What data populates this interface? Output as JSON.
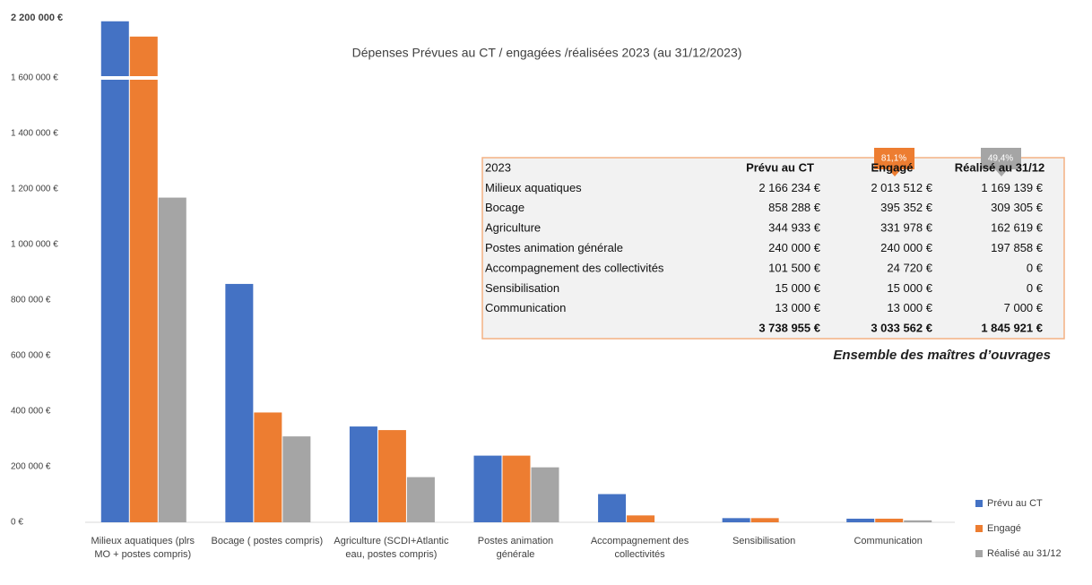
{
  "chart_data": {
    "type": "bar",
    "title": "Dépenses Prévues au CT / engagées /réalisées 2023 (au 31/12/2023)",
    "categories": [
      "Milieux aquatiques (plrs MO + postes compris)",
      "Bocage ( postes compris)",
      "Agriculture (SCDI+Atlantic eau, postes compris)",
      "Postes animation générale",
      "Accompagnement des collectivités",
      "Sensibilisation",
      "Communication"
    ],
    "series": [
      {
        "name": "Prévu au CT",
        "color": "#4472c4",
        "values": [
          2166234,
          858288,
          344933,
          240000,
          101500,
          15000,
          13000
        ]
      },
      {
        "name": "Engagé",
        "color": "#ed7d31",
        "values": [
          2013512,
          395352,
          331978,
          240000,
          24720,
          15000,
          13000
        ]
      },
      {
        "name": "Réalisé au 31/12",
        "color": "#a5a5a5",
        "values": [
          1169139,
          309305,
          162619,
          197858,
          0,
          0,
          7000
        ]
      }
    ],
    "ylim": [
      0,
      2200000
    ],
    "axis_break": 1600000,
    "yticks": [
      {
        "value": 0,
        "label": "0 €"
      },
      {
        "value": 200000,
        "label": "200 000 €"
      },
      {
        "value": 400000,
        "label": "400 000 €"
      },
      {
        "value": 600000,
        "label": "600 000 €"
      },
      {
        "value": 800000,
        "label": "800 000 €"
      },
      {
        "value": 1000000,
        "label": "1 000 000 €"
      },
      {
        "value": 1200000,
        "label": "1 200 000 €"
      },
      {
        "value": 1400000,
        "label": "1 400 000 €"
      },
      {
        "value": 1600000,
        "label": "1 600 000 €"
      },
      {
        "value": 2200000,
        "label": "2 200 000 €"
      }
    ],
    "grid": false,
    "legend": "right",
    "table": {
      "header": [
        "2023",
        "Prévu au CT",
        "Engagé",
        "Réalisé au 31/12"
      ],
      "rows": [
        [
          "Milieux aquatiques",
          "2 166 234 €",
          "2 013 512 €",
          "1 169 139 €"
        ],
        [
          "Bocage",
          "858 288 €",
          "395 352 €",
          "309 305 €"
        ],
        [
          "Agriculture",
          "344 933 €",
          "331 978 €",
          "162 619 €"
        ],
        [
          "Postes animation générale",
          "240 000 €",
          "240 000 €",
          "197 858 €"
        ],
        [
          "Accompagnement des collectivités",
          "101 500 €",
          "24 720 €",
          "0 €"
        ],
        [
          "Sensibilisation",
          "15 000 €",
          "15 000 €",
          "0 €"
        ],
        [
          "Communication",
          "13 000 €",
          "13 000 €",
          "7 000 €"
        ]
      ],
      "total": [
        "3 738 955 €",
        "3 033 562 €",
        "1 845 921 €"
      ]
    },
    "annotations": [
      "81,1%",
      "49,4%"
    ],
    "subtitle": "Ensemble des maîtres d’ouvrages"
  }
}
